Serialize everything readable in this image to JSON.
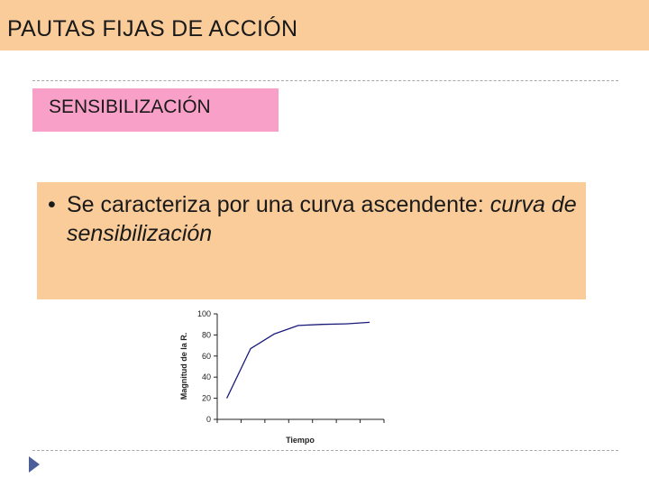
{
  "slide": {
    "title": "PAUTAS FIJAS DE ACCIÓN",
    "subtitle": "SENSIBILIZACIÓN",
    "bullet": {
      "marker": "•",
      "text_plain": "Se caracteriza por una curva ascendente: ",
      "text_italic": "curva de sensibilización"
    },
    "nav_icon": "triangle-right-icon"
  },
  "colors": {
    "title_bar": "#f9cc9a",
    "subtitle_box": "#f8a0c8",
    "content_box": "#f9cc9a",
    "curve": "#1a1a7a",
    "nav_icon": "#4c5e9a"
  },
  "chart_data": {
    "type": "line",
    "xlabel": "Tiempo",
    "ylabel": "Magnitud de la R.",
    "ylim": [
      0,
      100
    ],
    "yticks": [
      "0",
      "20",
      "40",
      "60",
      "80",
      "100"
    ],
    "xlim": [
      0,
      7
    ],
    "x_tick_count": 7,
    "x_tick_labels_shown": false,
    "grid": false,
    "series": [
      {
        "x": [
          0.4,
          1.4,
          2.4,
          3.4,
          4.4,
          5.4,
          6.4
        ],
        "y": [
          20,
          67,
          81,
          89,
          90,
          90.5,
          92
        ]
      }
    ]
  }
}
